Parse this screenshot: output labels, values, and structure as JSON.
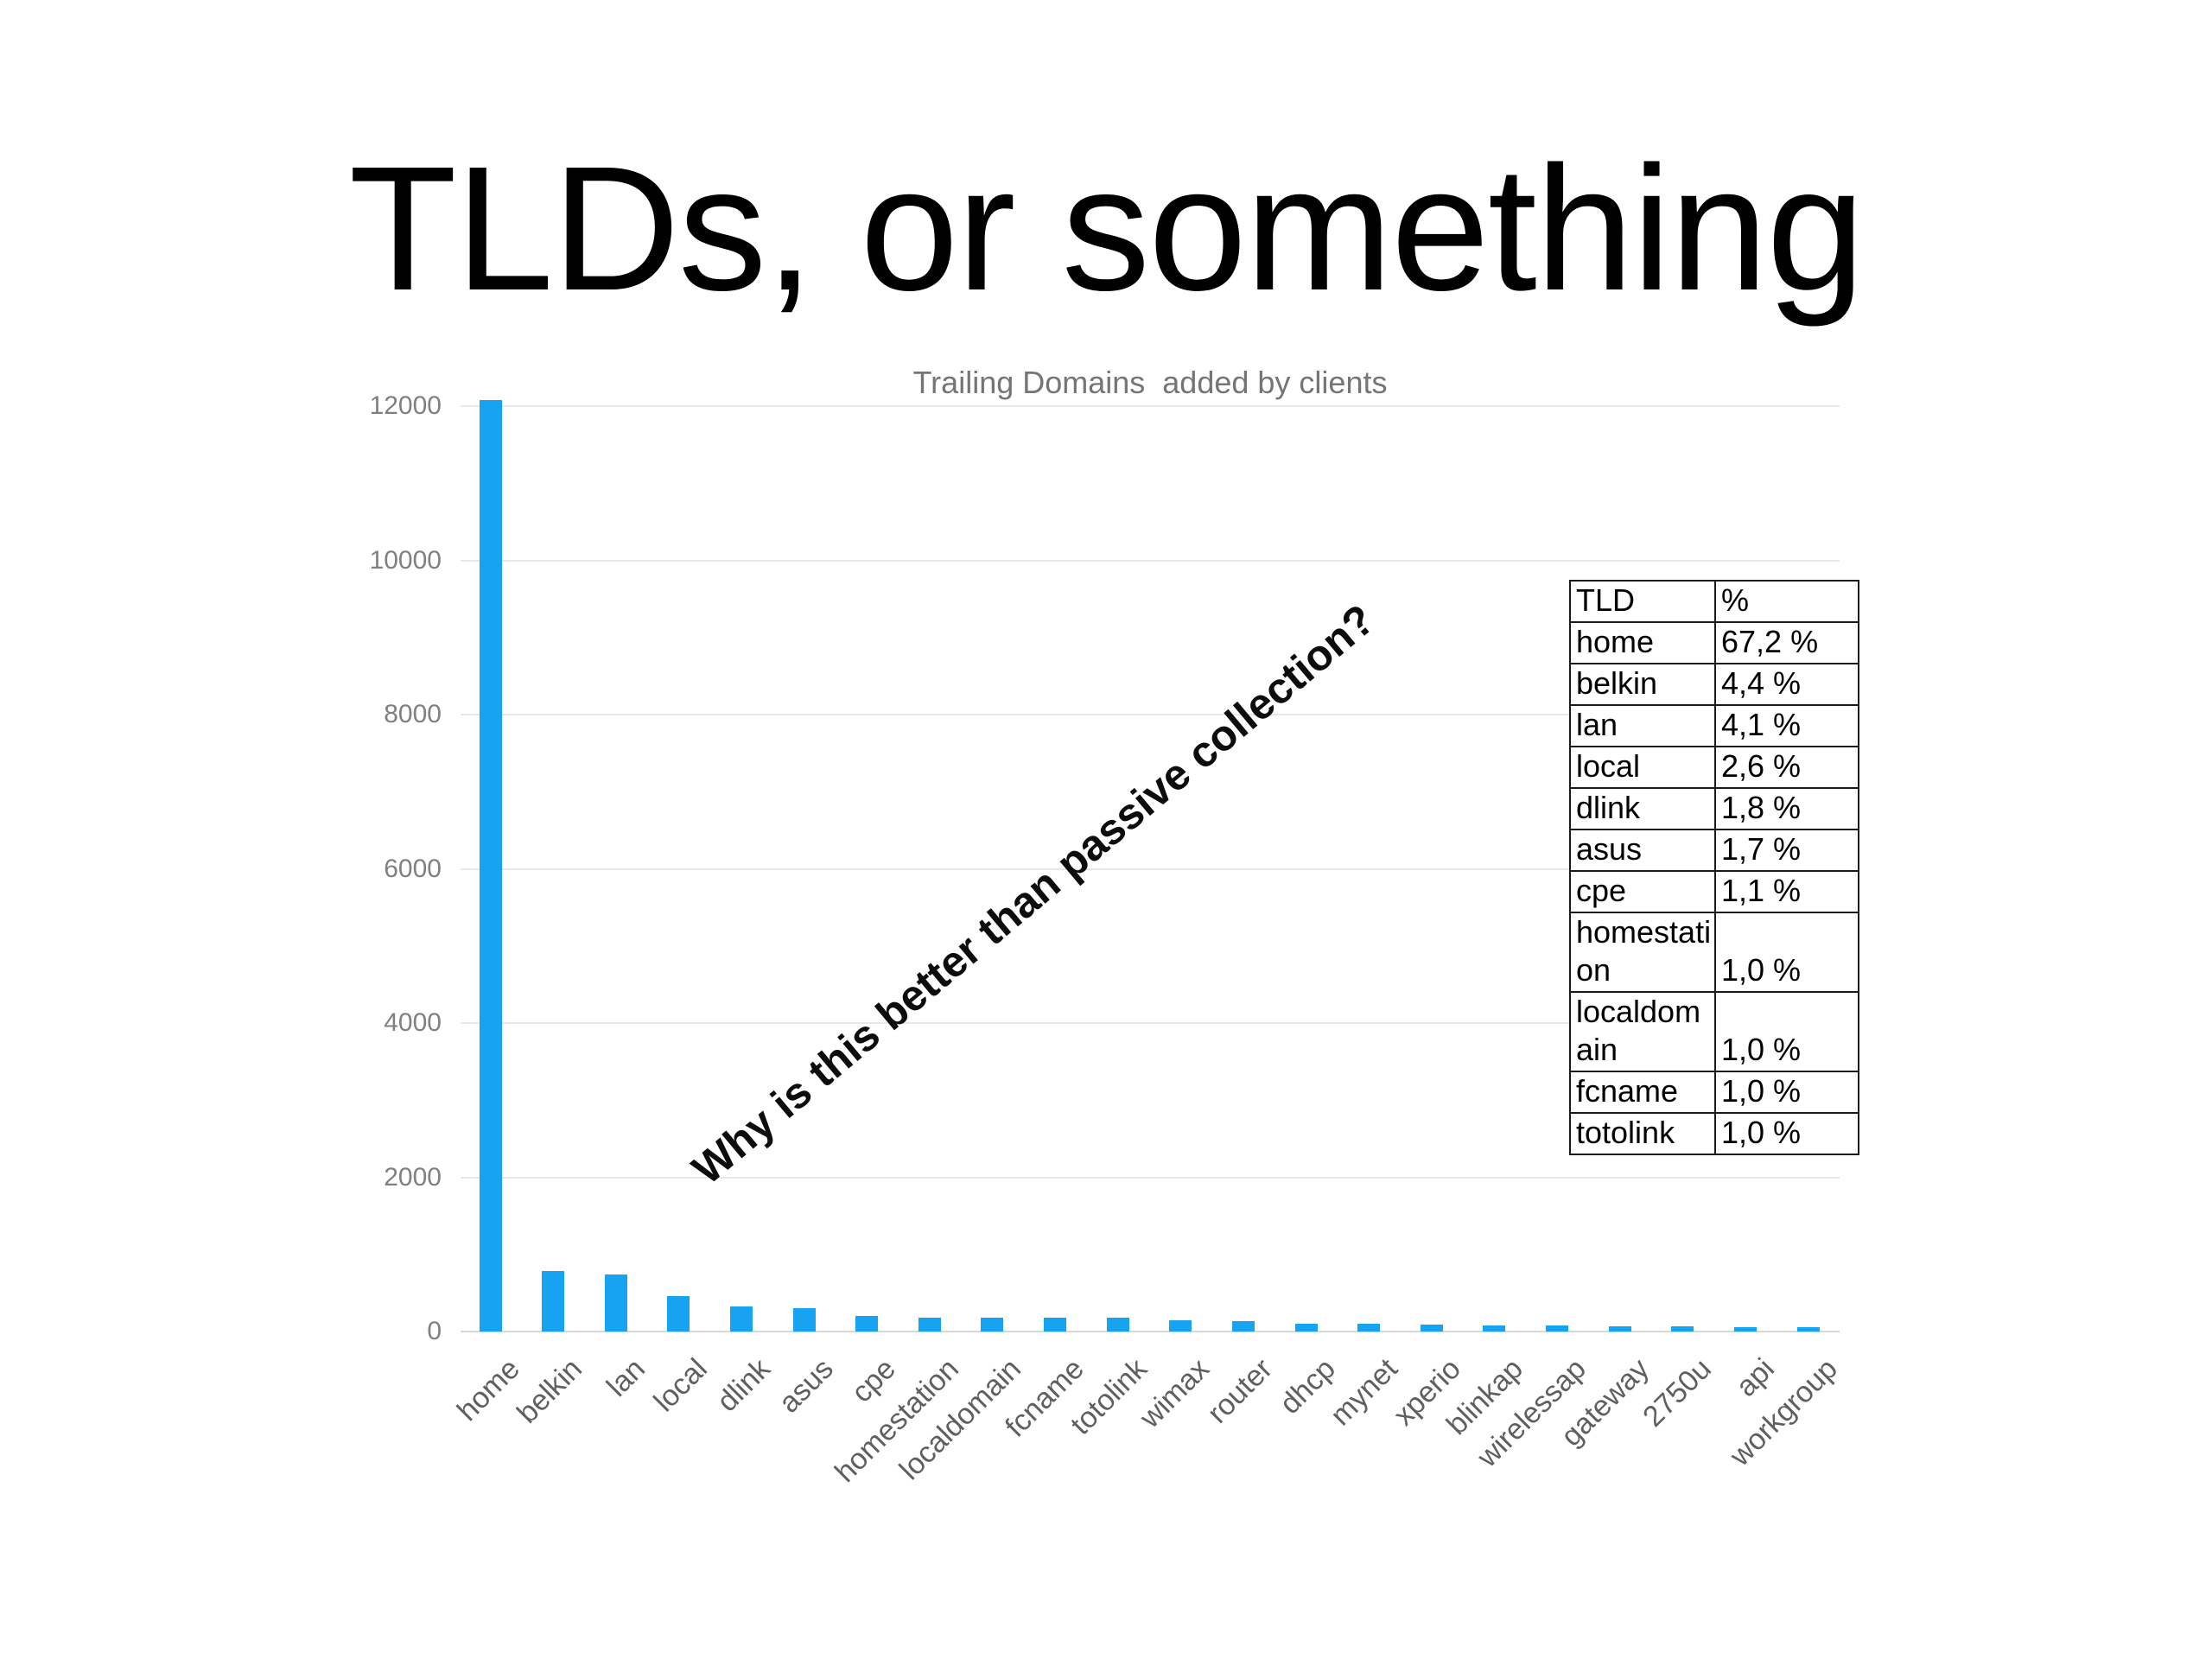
{
  "slide": {
    "title": "TLDs, or something"
  },
  "annotation": {
    "text": "Why is this better than passive collection?"
  },
  "colors": {
    "bar": "#18a3f2",
    "grid": "#e8e8e8",
    "axis_text": "#808080",
    "chart_title_text": "#757575"
  },
  "chart_data": {
    "type": "bar",
    "title": "Trailing Domains  added by clients",
    "categories": [
      "home",
      "belkin",
      "lan",
      "local",
      "dlink",
      "asus",
      "cpe",
      "homestation",
      "localdomain",
      "fcname",
      "totolink",
      "wimax",
      "router",
      "dhcp",
      "mynet",
      "xperio",
      "blinkap",
      "wirelessap",
      "gateway",
      "2750u",
      "api",
      "workgroup"
    ],
    "values": [
      12080,
      790,
      735,
      465,
      325,
      300,
      200,
      180,
      180,
      180,
      180,
      150,
      130,
      105,
      100,
      90,
      82,
      75,
      70,
      65,
      60,
      55
    ],
    "xlabel": "",
    "ylabel": "",
    "ylim": [
      0,
      12000
    ],
    "yticks": [
      0,
      2000,
      4000,
      6000,
      8000,
      10000,
      12000
    ],
    "grid": true,
    "legend": false,
    "bar_color": "#18a3f2"
  },
  "table": {
    "headers": [
      "TLD",
      "%"
    ],
    "rows": [
      [
        "home",
        "67,2 %"
      ],
      [
        "belkin",
        "4,4 %"
      ],
      [
        "lan",
        "4,1 %"
      ],
      [
        "local",
        "2,6 %"
      ],
      [
        "dlink",
        "1,8 %"
      ],
      [
        "asus",
        "1,7 %"
      ],
      [
        "cpe",
        "1,1 %"
      ],
      [
        "homestation",
        "1,0 %"
      ],
      [
        "localdomain",
        "1,0 %"
      ],
      [
        "fcname",
        "1,0 %"
      ],
      [
        "totolink",
        "1,0 %"
      ]
    ]
  }
}
